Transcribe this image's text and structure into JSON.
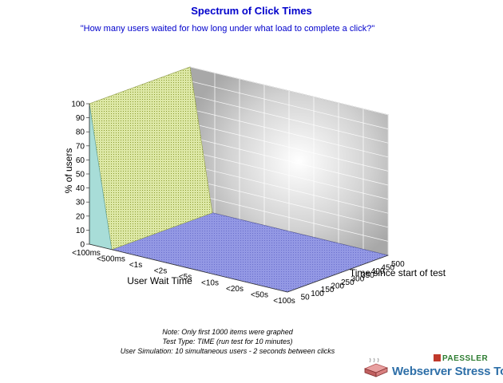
{
  "header": {
    "title": "Spectrum of Click Times",
    "subtitle": "\"How many users waited for how long under what load to complete a click?\""
  },
  "chart_data": {
    "type": "3d-surface",
    "title": "Spectrum of Click Times",
    "zlabel": "% of users",
    "xlabel": "User Wait Time",
    "ylabel": "Time since start of test",
    "z_ticks": [
      "0",
      "10",
      "20",
      "30",
      "40",
      "50",
      "60",
      "70",
      "80",
      "90",
      "100"
    ],
    "zlim": [
      0,
      100
    ],
    "wait_categories": [
      "<100ms",
      "<500ms",
      "<1s",
      "<2s",
      "<5s",
      "<10s",
      "<20s",
      "<50s",
      "<100s"
    ],
    "time_ticks": [
      "50",
      "100",
      "150",
      "200",
      "250",
      "300",
      "350",
      "400",
      "450",
      "500"
    ],
    "surface": {
      "description_values": "100% of users in <100ms bucket across entire test; 0% in all other buckets",
      "percent_by_wait_category": [
        100,
        0,
        0,
        0,
        0,
        0,
        0,
        0,
        0
      ]
    },
    "colors": {
      "wall_fill": "#dde8a6",
      "floor_fill": "#8a8fe0",
      "side_fill": "#a8ddd8"
    },
    "grid": true
  },
  "notes": [
    "Note: Only first 1000 items were graphed",
    "Test Type: TIME (run test for 10 minutes)",
    "User Simulation: 10 simultaneous users - 2 seconds between clicks"
  ],
  "logo": {
    "brand": "PAESSLER",
    "product": "Webserver Stress Tool",
    "icon": "server-rack-icon"
  }
}
